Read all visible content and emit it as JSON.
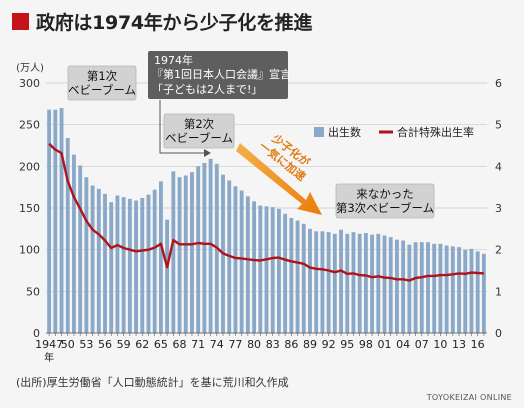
{
  "header": {
    "title": "政府は1974年から少子化を推進"
  },
  "chart_data": {
    "type": "bar+line",
    "y_left_unit": "(万人)",
    "y_left_lim": [
      0,
      300
    ],
    "y_left_ticks": [
      0,
      50,
      100,
      150,
      200,
      250,
      300
    ],
    "y_right_lim": [
      0,
      6
    ],
    "y_right_ticks": [
      0,
      1,
      2,
      3,
      4,
      5,
      6
    ],
    "x_tick_labels": [
      "1947",
      "50",
      "53",
      "56",
      "59",
      "62",
      "65",
      "68",
      "71",
      "74",
      "77",
      "80",
      "83",
      "86",
      "89",
      "92",
      "95",
      "98",
      "01",
      "04",
      "07",
      "10",
      "13",
      "16"
    ],
    "x_first_suffix": "年",
    "years": [
      1947,
      1948,
      1949,
      1950,
      1951,
      1952,
      1953,
      1954,
      1955,
      1956,
      1957,
      1958,
      1959,
      1960,
      1961,
      1962,
      1963,
      1964,
      1965,
      1966,
      1967,
      1968,
      1969,
      1970,
      1971,
      1972,
      1973,
      1974,
      1975,
      1976,
      1977,
      1978,
      1979,
      1980,
      1981,
      1982,
      1983,
      1984,
      1985,
      1986,
      1987,
      1988,
      1989,
      1990,
      1991,
      1992,
      1993,
      1994,
      1995,
      1996,
      1997,
      1998,
      1999,
      2000,
      2001,
      2002,
      2003,
      2004,
      2005,
      2006,
      2007,
      2008,
      2009,
      2010,
      2011,
      2012,
      2013,
      2014,
      2015,
      2016,
      2017
    ],
    "series": [
      {
        "name": "出生数",
        "axis": "left",
        "color": "#8aa8c8",
        "values": [
          268,
          268,
          270,
          234,
          214,
          201,
          187,
          177,
          173,
          167,
          157,
          165,
          163,
          161,
          159,
          162,
          166,
          172,
          182,
          136,
          194,
          187,
          189,
          193,
          200,
          204,
          209,
          203,
          190,
          183,
          176,
          171,
          164,
          158,
          153,
          152,
          151,
          149,
          143,
          138,
          135,
          131,
          125,
          122,
          122,
          121,
          119,
          124,
          119,
          121,
          119,
          120,
          118,
          119,
          117,
          115,
          112,
          111,
          106,
          109,
          109,
          109,
          107,
          107,
          105,
          104,
          103,
          100,
          101,
          98,
          95
        ]
      },
      {
        "name": "合計特殊出生率",
        "axis": "right",
        "color": "#b01319",
        "values": [
          4.54,
          4.4,
          4.32,
          3.65,
          3.26,
          2.98,
          2.69,
          2.48,
          2.37,
          2.22,
          2.04,
          2.11,
          2.04,
          2.0,
          1.96,
          1.98,
          2.0,
          2.05,
          2.14,
          1.58,
          2.23,
          2.13,
          2.13,
          2.13,
          2.16,
          2.14,
          2.14,
          2.05,
          1.91,
          1.85,
          1.8,
          1.79,
          1.77,
          1.75,
          1.74,
          1.77,
          1.8,
          1.81,
          1.76,
          1.72,
          1.69,
          1.66,
          1.57,
          1.54,
          1.53,
          1.5,
          1.46,
          1.5,
          1.42,
          1.43,
          1.39,
          1.38,
          1.34,
          1.36,
          1.33,
          1.32,
          1.29,
          1.29,
          1.26,
          1.32,
          1.34,
          1.37,
          1.37,
          1.39,
          1.39,
          1.41,
          1.43,
          1.42,
          1.45,
          1.44,
          1.43
        ]
      }
    ],
    "legend": {
      "placement": "top-right",
      "items": [
        "出生数",
        "合計特殊出生率"
      ]
    },
    "annotations": {
      "boom1": [
        "第1次",
        "ベビーブーム"
      ],
      "declaration": [
        "1974年",
        "『第1回日本人口会議』宣言",
        "「子どもは2人まで!」"
      ],
      "boom2": [
        "第2次",
        "ベビーブーム"
      ],
      "accel": [
        "少子化が",
        "一気に加速"
      ],
      "boom3": [
        "来なかった",
        "第3次ベビーブーム"
      ]
    }
  },
  "footer": {
    "source": "(出所)厚生労働省「人口動態統計」を基に荒川和久作成",
    "credit": "TOYOKEIZAI ONLINE"
  }
}
